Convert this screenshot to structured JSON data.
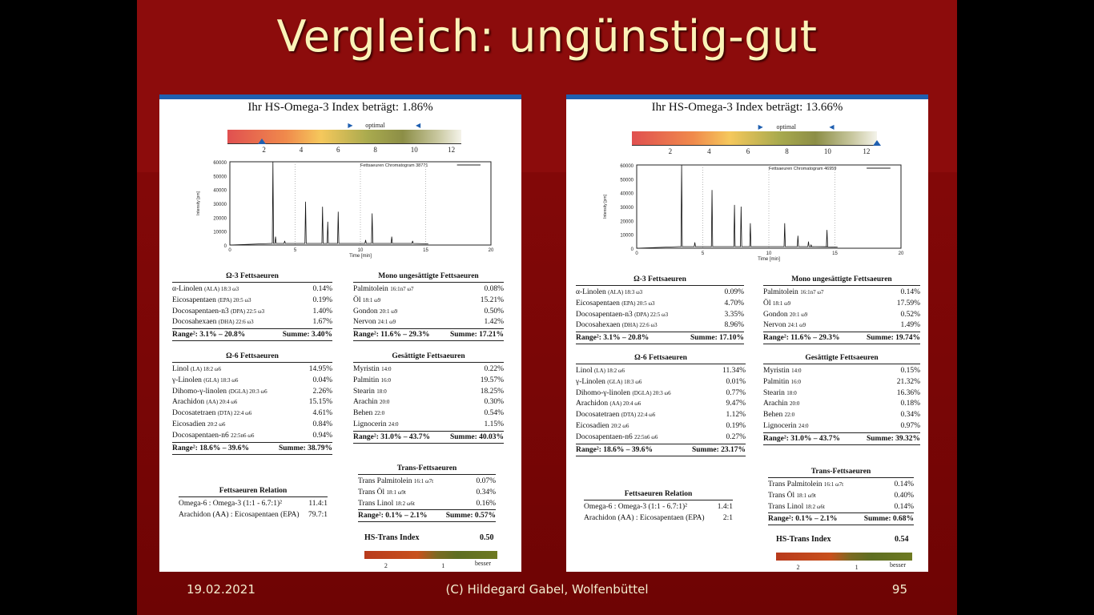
{
  "slide": {
    "title": "Vergleich: ungünstig-gut",
    "footer_date": "19.02.2021",
    "footer_center": "(C) Hildegard Gabel, Wolfenbüttel",
    "footer_page": "95"
  },
  "panels": [
    {
      "title": "Ihr HS-Omega-3 Index beträgt: 1.86%",
      "optimal_label": "optimal",
      "scale_ticks": [
        "2",
        "4",
        "6",
        "8",
        "10",
        "12"
      ],
      "marker_value": 1.86,
      "chrom": {
        "legend": "Fettsaeuren Chromatogram 38771",
        "ylabel": "Intensity [pm]",
        "xlabel": "Time [min]",
        "yticks": [
          "60000",
          "50000",
          "40000",
          "30000",
          "20000",
          "10000",
          "0"
        ],
        "xticks": [
          "0",
          "5",
          "10",
          "15",
          "20"
        ]
      },
      "omega3": {
        "head": "Ω-3 Fettsaeuren",
        "rows": [
          {
            "name": "α-Linolen",
            "sub": "(ALA) 18:3 ω3",
            "val": "0.14%"
          },
          {
            "name": "Eicosapentaen",
            "sub": "(EPA) 20:5 ω3",
            "val": "0.19%"
          },
          {
            "name": "Docosapentaen-n3",
            "sub": "(DPA) 22:5 ω3",
            "val": "1.40%"
          },
          {
            "name": "Docosahexaen",
            "sub": "(DHA) 22:6 ω3",
            "val": "1.67%"
          }
        ],
        "range": "Range²: 3.1% – 20.8%",
        "sum": "Summe: 3.40%"
      },
      "mono": {
        "head": "Mono ungesättigte Fettsaeuren",
        "rows": [
          {
            "name": "Palmitolein",
            "sub": "16:1n7 ω7",
            "val": "0.08%"
          },
          {
            "name": "Öl",
            "sub": "18:1 ω9",
            "val": "15.21%"
          },
          {
            "name": "Gondon",
            "sub": "20:1 ω9",
            "val": "0.50%"
          },
          {
            "name": "Nervon",
            "sub": "24:1 ω9",
            "val": "1.42%"
          }
        ],
        "range": "Range²: 11.6% – 29.3%",
        "sum": "Summe: 17.21%"
      },
      "omega6": {
        "head": "Ω-6 Fettsaeuren",
        "rows": [
          {
            "name": "Linol",
            "sub": "(LA) 18:2 ω6",
            "val": "14.95%"
          },
          {
            "name": "γ-Linolen",
            "sub": "(GLA) 18:3 ω6",
            "val": "0.04%"
          },
          {
            "name": "Dihomo-γ-linolen",
            "sub": "(DGLA) 20:3 ω6",
            "val": "2.26%"
          },
          {
            "name": "Arachidon",
            "sub": "(AA) 20:4 ω6",
            "val": "15.15%"
          },
          {
            "name": "Docosatetraen",
            "sub": "(DTA) 22:4 ω6",
            "val": "4.61%"
          },
          {
            "name": "Eicosadien",
            "sub": "20:2 ω6",
            "val": "0.84%"
          },
          {
            "name": "Docosapentaen-n6",
            "sub": "22:5n6 ω6",
            "val": "0.94%"
          }
        ],
        "range": "Range²: 18.6% – 39.6%",
        "sum": "Summe: 38.79%"
      },
      "saturated": {
        "head": "Gesättigte Fettsaeuren",
        "rows": [
          {
            "name": "Myristin",
            "sub": "14:0",
            "val": "0.22%"
          },
          {
            "name": "Palmitin",
            "sub": "16:0",
            "val": "19.57%"
          },
          {
            "name": "Stearin",
            "sub": "18:0",
            "val": "18.25%"
          },
          {
            "name": "Arachin",
            "sub": "20:0",
            "val": "0.30%"
          },
          {
            "name": "Behen",
            "sub": "22:0",
            "val": "0.54%"
          },
          {
            "name": "Lignocerin",
            "sub": "24:0",
            "val": "1.15%"
          }
        ],
        "range": "Range²: 31.0% – 43.7%",
        "sum": "Summe: 40.03%"
      },
      "trans": {
        "head": "Trans-Fettsaeuren",
        "rows": [
          {
            "name": "Trans Palmitolein",
            "sub": "16:1 ω7t",
            "val": "0.07%"
          },
          {
            "name": "Trans Öl",
            "sub": "18:1 ω9t",
            "val": "0.34%"
          },
          {
            "name": "Trans Linol",
            "sub": "18:2 ω6t",
            "val": "0.16%"
          }
        ],
        "range": "Range²: 0.1% – 2.1%",
        "sum": "Summe: 0.57%"
      },
      "relation": {
        "head": "Fettsaeuren Relation",
        "rows": [
          {
            "name": "Omega-6 : Omega-3 (1:1 - 6.7:1)²",
            "sub": "",
            "val": "11.4:1"
          },
          {
            "name": "Arachidon (AA) : Eicosapentaen (EPA)",
            "sub": "",
            "val": "79.7:1"
          }
        ]
      },
      "hs_trans": {
        "label": "HS-Trans Index",
        "value": "0.50",
        "ticks": [
          "2",
          "1"
        ],
        "besser": "besser",
        "marker_level": 0.8
      }
    },
    {
      "title": "Ihr HS-Omega-3 Index beträgt: 13.66%",
      "optimal_label": "optimal",
      "scale_ticks": [
        "2",
        "4",
        "6",
        "8",
        "10",
        "12"
      ],
      "marker_value": 13.66,
      "chrom": {
        "legend": "Fettsaeuren Chromatogram 46959",
        "ylabel": "Intensity [pm]",
        "xlabel": "Time [min]",
        "yticks": [
          "60000",
          "50000",
          "40000",
          "30000",
          "20000",
          "10000",
          "0"
        ],
        "xticks": [
          "0",
          "5",
          "10",
          "15",
          "20"
        ]
      },
      "omega3": {
        "head": "Ω-3 Fettsaeuren",
        "rows": [
          {
            "name": "α-Linolen",
            "sub": "(ALA) 18:3 ω3",
            "val": "0.09%"
          },
          {
            "name": "Eicosapentaen",
            "sub": "(EPA) 20:5 ω3",
            "val": "4.70%"
          },
          {
            "name": "Docosapentaen-n3",
            "sub": "(DPA) 22:5 ω3",
            "val": "3.35%"
          },
          {
            "name": "Docosahexaen",
            "sub": "(DHA) 22:6 ω3",
            "val": "8.96%"
          }
        ],
        "range": "Range²: 3.1% – 20.8%",
        "sum": "Summe: 17.10%"
      },
      "mono": {
        "head": "Mono ungesättigte Fettsaeuren",
        "rows": [
          {
            "name": "Palmitolein",
            "sub": "16:1n7 ω7",
            "val": "0.14%"
          },
          {
            "name": "Öl",
            "sub": "18:1 ω9",
            "val": "17.59%"
          },
          {
            "name": "Gondon",
            "sub": "20:1 ω9",
            "val": "0.52%"
          },
          {
            "name": "Nervon",
            "sub": "24:1 ω9",
            "val": "1.49%"
          }
        ],
        "range": "Range²: 11.6% – 29.3%",
        "sum": "Summe: 19.74%"
      },
      "omega6": {
        "head": "Ω-6 Fettsaeuren",
        "rows": [
          {
            "name": "Linol",
            "sub": "(LA) 18:2 ω6",
            "val": "11.34%"
          },
          {
            "name": "γ-Linolen",
            "sub": "(GLA) 18:3 ω6",
            "val": "0.01%"
          },
          {
            "name": "Dihomo-γ-linolen",
            "sub": "(DGLA) 20:3 ω6",
            "val": "0.77%"
          },
          {
            "name": "Arachidon",
            "sub": "(AA) 20:4 ω6",
            "val": "9.47%"
          },
          {
            "name": "Docosatetraen",
            "sub": "(DTA) 22:4 ω6",
            "val": "1.12%"
          },
          {
            "name": "Eicosadien",
            "sub": "20:2 ω6",
            "val": "0.19%"
          },
          {
            "name": "Docosapentaen-n6",
            "sub": "22:5n6 ω6",
            "val": "0.27%"
          }
        ],
        "range": "Range²: 18.6% – 39.6%",
        "sum": "Summe: 23.17%"
      },
      "saturated": {
        "head": "Gesättigte Fettsaeuren",
        "rows": [
          {
            "name": "Myristin",
            "sub": "14:0",
            "val": "0.15%"
          },
          {
            "name": "Palmitin",
            "sub": "16:0",
            "val": "21.32%"
          },
          {
            "name": "Stearin",
            "sub": "18:0",
            "val": "16.36%"
          },
          {
            "name": "Arachin",
            "sub": "20:0",
            "val": "0.18%"
          },
          {
            "name": "Behen",
            "sub": "22:0",
            "val": "0.34%"
          },
          {
            "name": "Lignocerin",
            "sub": "24:0",
            "val": "0.97%"
          }
        ],
        "range": "Range²: 31.0% – 43.7%",
        "sum": "Summe: 39.32%"
      },
      "trans": {
        "head": "Trans-Fettsaeuren",
        "rows": [
          {
            "name": "Trans Palmitolein",
            "sub": "16:1 ω7t",
            "val": "0.14%"
          },
          {
            "name": "Trans Öl",
            "sub": "18:1 ω9t",
            "val": "0.40%"
          },
          {
            "name": "Trans Linol",
            "sub": "18:2 ω6t",
            "val": "0.14%"
          }
        ],
        "range": "Range²: 0.1% – 2.1%",
        "sum": "Summe: 0.68%"
      },
      "relation": {
        "head": "Fettsaeuren Relation",
        "rows": [
          {
            "name": "Omega-6 : Omega-3 (1:1 - 6.7:1)²",
            "sub": "",
            "val": "1.4:1"
          },
          {
            "name": "Arachidon (AA) : Eicosapentaen (EPA)",
            "sub": "",
            "val": "2:1"
          }
        ]
      },
      "hs_trans": {
        "label": "HS-Trans Index",
        "value": "0.54",
        "ticks": [
          "2",
          "1"
        ],
        "besser": "besser",
        "marker_level": 0.78
      }
    }
  ]
}
